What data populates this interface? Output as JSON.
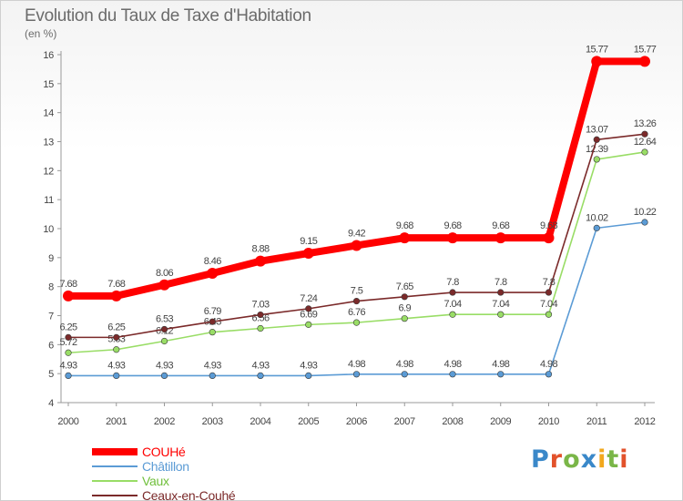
{
  "title": "Evolution du Taux de Taxe d'Habitation",
  "unit_label": "(en %)",
  "brand": {
    "text": "Proxiti",
    "letter_colors": [
      "#3a88c9",
      "#e2522b",
      "#7ab648",
      "#3a88c9",
      "#f2a81d",
      "#7ab648",
      "#e2522b"
    ]
  },
  "chart_data": {
    "type": "line",
    "x": [
      "2000",
      "2001",
      "2002",
      "2003",
      "2004",
      "2005",
      "2006",
      "2007",
      "2008",
      "2009",
      "2010",
      "2011",
      "2012"
    ],
    "ylim": [
      4,
      16
    ],
    "yticks": [
      "4",
      "5",
      "6",
      "7",
      "8",
      "9",
      "10",
      "11",
      "12",
      "13",
      "14",
      "15",
      "16"
    ],
    "grid": false,
    "legend_position": "bottom-left",
    "series": [
      {
        "name": "COUHé",
        "color": "#ff0000",
        "values": [
          7.68,
          7.68,
          8.06,
          8.46,
          8.88,
          9.15,
          9.42,
          9.68,
          9.68,
          9.68,
          9.68,
          15.77,
          15.77
        ],
        "labels": [
          "7.68",
          "7.68",
          "8.06",
          "8.46",
          "8.88",
          "9.15",
          "9.42",
          "9.68",
          "9.68",
          "9.68",
          "9.68",
          "15.77",
          "15.77"
        ]
      },
      {
        "name": "Châtillon",
        "color": "#5b9bd5",
        "values": [
          4.93,
          4.93,
          4.93,
          4.93,
          4.93,
          4.93,
          4.98,
          4.98,
          4.98,
          4.98,
          4.98,
          10.02,
          10.22
        ],
        "labels": [
          "4.93",
          "4.93",
          "4.93",
          "4.93",
          "4.93",
          "4.93",
          "4.98",
          "4.98",
          "4.98",
          "4.98",
          "4.98",
          "10.02",
          "10.22"
        ]
      },
      {
        "name": "Vaux",
        "color": "#99dd66",
        "values": [
          5.72,
          5.83,
          6.12,
          6.43,
          6.56,
          6.69,
          6.76,
          6.9,
          7.04,
          7.04,
          7.04,
          12.39,
          12.64
        ],
        "labels": [
          "5.72",
          "5.83",
          "6.12",
          "6.43",
          "6.56",
          "6.69",
          "6.76",
          "6.9",
          "7.04",
          "7.04",
          "7.04",
          "12.39",
          "12.64"
        ]
      },
      {
        "name": "Ceaux-en-Couhé",
        "color": "#7b2a2a",
        "values": [
          6.25,
          6.25,
          6.53,
          6.79,
          7.03,
          7.24,
          7.5,
          7.65,
          7.8,
          7.8,
          7.8,
          13.07,
          13.26
        ],
        "labels": [
          "6.25",
          "6.25",
          "6.53",
          "6.79",
          "7.03",
          "7.24",
          "7.5",
          "7.65",
          "7.8",
          "7.8",
          "7.8",
          "13.07",
          "13.26"
        ]
      }
    ]
  }
}
